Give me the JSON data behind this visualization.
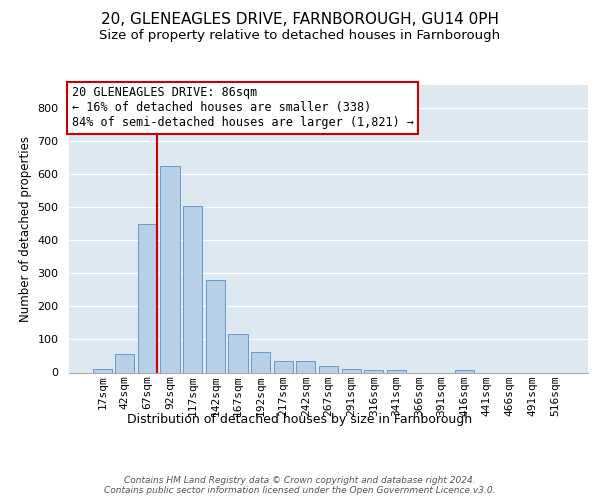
{
  "title": "20, GLENEAGLES DRIVE, FARNBOROUGH, GU14 0PH",
  "subtitle": "Size of property relative to detached houses in Farnborough",
  "xlabel": "Distribution of detached houses by size in Farnborough",
  "ylabel": "Number of detached properties",
  "bar_values": [
    12,
    55,
    450,
    625,
    505,
    280,
    118,
    62,
    35,
    35,
    20,
    10,
    8,
    8,
    0,
    0,
    8,
    0,
    0,
    0,
    0
  ],
  "bar_labels": [
    "17sqm",
    "42sqm",
    "67sqm",
    "92sqm",
    "117sqm",
    "142sqm",
    "167sqm",
    "192sqm",
    "217sqm",
    "242sqm",
    "267sqm",
    "291sqm",
    "316sqm",
    "341sqm",
    "366sqm",
    "391sqm",
    "416sqm",
    "441sqm",
    "466sqm",
    "491sqm",
    "516sqm"
  ],
  "bar_color": "#b8cfe8",
  "bar_edge_color": "#6699cc",
  "vline_color": "#cc0000",
  "vline_x": 2.425,
  "annotation_line1": "20 GLENEAGLES DRIVE: 86sqm",
  "annotation_line2": "← 16% of detached houses are smaller (338)",
  "annotation_line3": "84% of semi-detached houses are larger (1,821) →",
  "annotation_box_edge": "#cc0000",
  "ylim": [
    0,
    870
  ],
  "yticks": [
    0,
    100,
    200,
    300,
    400,
    500,
    600,
    700,
    800
  ],
  "background_color": "#dde8f0",
  "grid_color": "#ffffff",
  "footer_line1": "Contains HM Land Registry data © Crown copyright and database right 2024.",
  "footer_line2": "Contains public sector information licensed under the Open Government Licence v3.0.",
  "title_fontsize": 11,
  "subtitle_fontsize": 9.5,
  "xlabel_fontsize": 9,
  "ylabel_fontsize": 8.5,
  "tick_fontsize": 8,
  "footer_fontsize": 6.5,
  "annot_fontsize": 8.5
}
